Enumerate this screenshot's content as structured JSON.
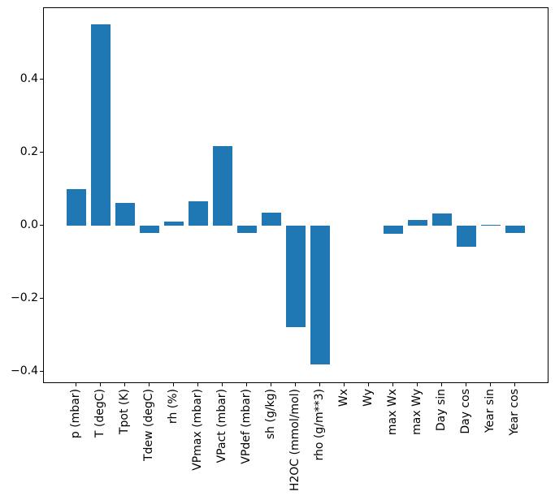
{
  "figure": {
    "background_color": "#ffffff",
    "spine_color": "#000000",
    "text_color": "#000000"
  },
  "chart_data": {
    "type": "bar",
    "title": "",
    "xlabel": "",
    "ylabel": "",
    "orientation": "vertical",
    "grid": false,
    "legend": "none",
    "bar_color": "#1f77b4",
    "categories": [
      "p (mbar)",
      "T (degC)",
      "Tpot (K)",
      "Tdew (degC)",
      "rh (%)",
      "VPmax (mbar)",
      "VPact (mbar)",
      "VPdef (mbar)",
      "sh (g/kg)",
      "H2OC (mmol/mol)",
      "rho (g/m**3)",
      "Wx",
      "Wy",
      "max Wx",
      "max Wy",
      "Day sin",
      "Day cos",
      "Year sin",
      "Year cos"
    ],
    "values": [
      0.1,
      0.55,
      0.063,
      -0.021,
      0.011,
      0.066,
      0.218,
      -0.021,
      0.035,
      -0.277,
      -0.381,
      0.0,
      0.0,
      -0.022,
      0.015,
      0.034,
      -0.059,
      0.002,
      -0.021
    ],
    "ylim": [
      -0.429,
      0.595
    ],
    "yticks": [
      {
        "value": -0.4,
        "label": "−0.4"
      },
      {
        "value": -0.2,
        "label": "−0.2"
      },
      {
        "value": 0.0,
        "label": "0.0"
      },
      {
        "value": 0.2,
        "label": "0.2"
      },
      {
        "value": 0.4,
        "label": "0.4"
      }
    ]
  }
}
